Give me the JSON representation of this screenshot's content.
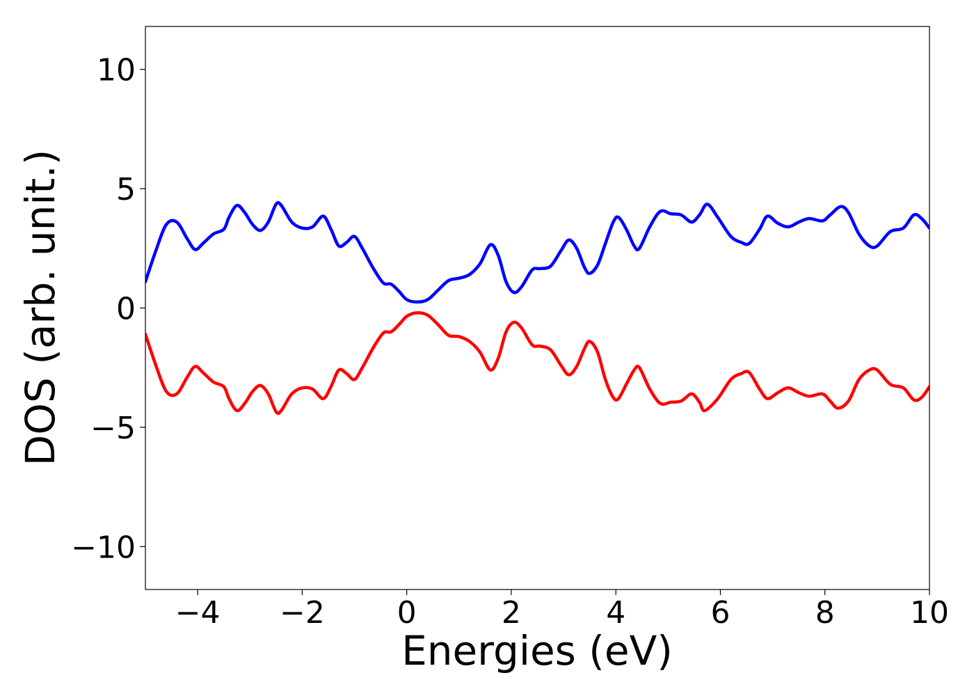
{
  "chart_data": {
    "type": "line",
    "title": "",
    "xlabel": "Energies (eV)",
    "ylabel": "DOS (arb. unit.)",
    "xlim": [
      -5,
      10
    ],
    "ylim": [
      -11.8,
      11.8
    ],
    "x_ticks": [
      -4,
      -2,
      0,
      2,
      4,
      6,
      8,
      10
    ],
    "x_tick_labels": [
      "−4",
      "−2",
      "0",
      "2",
      "4",
      "6",
      "8",
      "10"
    ],
    "y_ticks": [
      10,
      5,
      0,
      -5,
      -10
    ],
    "y_tick_labels": [
      "10",
      "5",
      "0",
      "−5",
      "−10"
    ],
    "grid": false,
    "legend": "none",
    "series": [
      {
        "color": "#0000ff",
        "points": [
          [
            -5.0,
            1.1
          ],
          [
            -4.8,
            2.4
          ],
          [
            -4.6,
            3.5
          ],
          [
            -4.4,
            3.6
          ],
          [
            -4.2,
            2.9
          ],
          [
            -4.05,
            2.45
          ],
          [
            -3.9,
            2.7
          ],
          [
            -3.7,
            3.1
          ],
          [
            -3.5,
            3.3
          ],
          [
            -3.4,
            3.8
          ],
          [
            -3.25,
            4.3
          ],
          [
            -3.1,
            4.0
          ],
          [
            -2.95,
            3.5
          ],
          [
            -2.8,
            3.25
          ],
          [
            -2.65,
            3.6
          ],
          [
            -2.5,
            4.35
          ],
          [
            -2.4,
            4.3
          ],
          [
            -2.2,
            3.6
          ],
          [
            -2.0,
            3.35
          ],
          [
            -1.8,
            3.4
          ],
          [
            -1.6,
            3.85
          ],
          [
            -1.45,
            3.3
          ],
          [
            -1.3,
            2.6
          ],
          [
            -1.15,
            2.75
          ],
          [
            -1.0,
            3.0
          ],
          [
            -0.85,
            2.5
          ],
          [
            -0.65,
            1.7
          ],
          [
            -0.45,
            1.05
          ],
          [
            -0.3,
            1.0
          ],
          [
            -0.15,
            0.7
          ],
          [
            0.0,
            0.35
          ],
          [
            0.2,
            0.25
          ],
          [
            0.4,
            0.35
          ],
          [
            0.6,
            0.75
          ],
          [
            0.8,
            1.15
          ],
          [
            1.0,
            1.25
          ],
          [
            1.2,
            1.4
          ],
          [
            1.4,
            1.85
          ],
          [
            1.6,
            2.65
          ],
          [
            1.75,
            2.2
          ],
          [
            1.9,
            1.1
          ],
          [
            2.05,
            0.65
          ],
          [
            2.2,
            0.9
          ],
          [
            2.4,
            1.6
          ],
          [
            2.55,
            1.65
          ],
          [
            2.75,
            1.75
          ],
          [
            2.95,
            2.4
          ],
          [
            3.1,
            2.85
          ],
          [
            3.25,
            2.5
          ],
          [
            3.4,
            1.7
          ],
          [
            3.5,
            1.45
          ],
          [
            3.65,
            1.8
          ],
          [
            3.8,
            2.7
          ],
          [
            3.95,
            3.6
          ],
          [
            4.05,
            3.8
          ],
          [
            4.2,
            3.3
          ],
          [
            4.35,
            2.6
          ],
          [
            4.45,
            2.5
          ],
          [
            4.65,
            3.4
          ],
          [
            4.85,
            4.05
          ],
          [
            5.05,
            3.95
          ],
          [
            5.25,
            3.9
          ],
          [
            5.45,
            3.6
          ],
          [
            5.6,
            3.9
          ],
          [
            5.75,
            4.35
          ],
          [
            5.95,
            3.8
          ],
          [
            6.2,
            3.0
          ],
          [
            6.4,
            2.75
          ],
          [
            6.55,
            2.7
          ],
          [
            6.75,
            3.3
          ],
          [
            6.9,
            3.85
          ],
          [
            7.1,
            3.55
          ],
          [
            7.3,
            3.4
          ],
          [
            7.5,
            3.6
          ],
          [
            7.7,
            3.75
          ],
          [
            7.95,
            3.65
          ],
          [
            8.1,
            3.9
          ],
          [
            8.3,
            4.25
          ],
          [
            8.45,
            4.0
          ],
          [
            8.65,
            3.1
          ],
          [
            8.85,
            2.6
          ],
          [
            9.0,
            2.6
          ],
          [
            9.25,
            3.2
          ],
          [
            9.5,
            3.35
          ],
          [
            9.7,
            3.9
          ],
          [
            9.85,
            3.75
          ],
          [
            10.0,
            3.35
          ]
        ]
      },
      {
        "color": "#ff0000",
        "points": [
          [
            -5.0,
            -1.1
          ],
          [
            -4.8,
            -2.4
          ],
          [
            -4.6,
            -3.5
          ],
          [
            -4.4,
            -3.6
          ],
          [
            -4.2,
            -2.9
          ],
          [
            -4.05,
            -2.45
          ],
          [
            -3.9,
            -2.7
          ],
          [
            -3.7,
            -3.1
          ],
          [
            -3.5,
            -3.3
          ],
          [
            -3.4,
            -3.8
          ],
          [
            -3.25,
            -4.3
          ],
          [
            -3.1,
            -4.0
          ],
          [
            -2.95,
            -3.5
          ],
          [
            -2.8,
            -3.25
          ],
          [
            -2.65,
            -3.6
          ],
          [
            -2.5,
            -4.35
          ],
          [
            -2.4,
            -4.3
          ],
          [
            -2.2,
            -3.6
          ],
          [
            -2.0,
            -3.35
          ],
          [
            -1.8,
            -3.4
          ],
          [
            -1.6,
            -3.8
          ],
          [
            -1.45,
            -3.3
          ],
          [
            -1.3,
            -2.6
          ],
          [
            -1.15,
            -2.75
          ],
          [
            -1.0,
            -3.0
          ],
          [
            -0.85,
            -2.5
          ],
          [
            -0.65,
            -1.7
          ],
          [
            -0.45,
            -1.05
          ],
          [
            -0.3,
            -1.0
          ],
          [
            -0.15,
            -0.7
          ],
          [
            0.0,
            -0.35
          ],
          [
            0.2,
            -0.2
          ],
          [
            0.4,
            -0.3
          ],
          [
            0.6,
            -0.7
          ],
          [
            0.8,
            -1.15
          ],
          [
            1.0,
            -1.2
          ],
          [
            1.2,
            -1.4
          ],
          [
            1.4,
            -1.85
          ],
          [
            1.6,
            -2.6
          ],
          [
            1.75,
            -2.1
          ],
          [
            1.9,
            -1.0
          ],
          [
            2.05,
            -0.6
          ],
          [
            2.2,
            -0.85
          ],
          [
            2.4,
            -1.55
          ],
          [
            2.55,
            -1.6
          ],
          [
            2.75,
            -1.75
          ],
          [
            2.95,
            -2.4
          ],
          [
            3.1,
            -2.8
          ],
          [
            3.25,
            -2.45
          ],
          [
            3.4,
            -1.7
          ],
          [
            3.5,
            -1.4
          ],
          [
            3.65,
            -1.85
          ],
          [
            3.8,
            -3.0
          ],
          [
            3.95,
            -3.75
          ],
          [
            4.05,
            -3.8
          ],
          [
            4.2,
            -3.2
          ],
          [
            4.35,
            -2.6
          ],
          [
            4.45,
            -2.5
          ],
          [
            4.65,
            -3.4
          ],
          [
            4.85,
            -4.0
          ],
          [
            5.05,
            -3.95
          ],
          [
            5.25,
            -3.9
          ],
          [
            5.45,
            -3.6
          ],
          [
            5.6,
            -3.95
          ],
          [
            5.7,
            -4.3
          ],
          [
            5.95,
            -3.8
          ],
          [
            6.2,
            -3.0
          ],
          [
            6.4,
            -2.75
          ],
          [
            6.55,
            -2.7
          ],
          [
            6.75,
            -3.4
          ],
          [
            6.9,
            -3.8
          ],
          [
            7.1,
            -3.55
          ],
          [
            7.3,
            -3.35
          ],
          [
            7.5,
            -3.55
          ],
          [
            7.7,
            -3.7
          ],
          [
            7.95,
            -3.6
          ],
          [
            8.1,
            -3.9
          ],
          [
            8.25,
            -4.2
          ],
          [
            8.45,
            -3.9
          ],
          [
            8.65,
            -3.0
          ],
          [
            8.85,
            -2.6
          ],
          [
            9.0,
            -2.6
          ],
          [
            9.25,
            -3.2
          ],
          [
            9.5,
            -3.35
          ],
          [
            9.7,
            -3.85
          ],
          [
            9.85,
            -3.75
          ],
          [
            10.0,
            -3.3
          ]
        ]
      }
    ]
  }
}
